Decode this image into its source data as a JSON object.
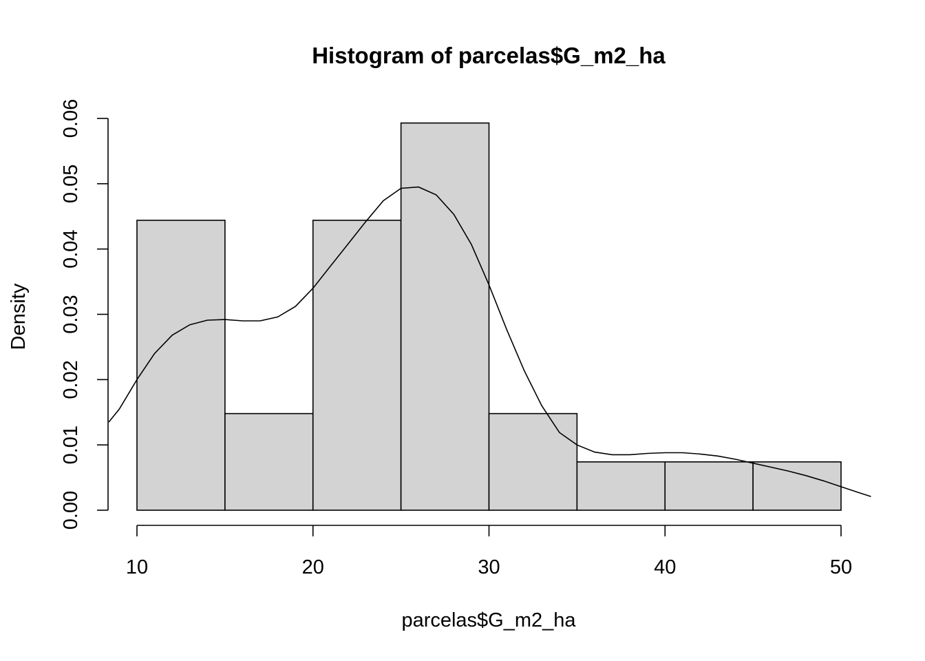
{
  "chart_data": {
    "type": "bar",
    "title": "Histogram of parcelas$G_m2_ha",
    "xlabel": "parcelas$G_m2_ha",
    "ylabel": "Density",
    "bins": [
      {
        "start": 10,
        "end": 15,
        "density": 0.0444
      },
      {
        "start": 15,
        "end": 20,
        "density": 0.0148
      },
      {
        "start": 20,
        "end": 25,
        "density": 0.0444
      },
      {
        "start": 25,
        "end": 30,
        "density": 0.0593
      },
      {
        "start": 30,
        "end": 35,
        "density": 0.0148
      },
      {
        "start": 35,
        "end": 40,
        "density": 0.0074
      },
      {
        "start": 40,
        "end": 45,
        "density": 0.0074
      },
      {
        "start": 45,
        "end": 50,
        "density": 0.0074
      }
    ],
    "x_ticks": [
      "10",
      "20",
      "30",
      "40",
      "50"
    ],
    "y_ticks": [
      "0.00",
      "0.01",
      "0.02",
      "0.03",
      "0.04",
      "0.05",
      "0.06"
    ],
    "xlim": [
      10,
      50
    ],
    "ylim": [
      0,
      0.06
    ],
    "grid": false,
    "legend": "none",
    "density_curve": {
      "x": [
        8.4,
        9,
        10,
        11,
        12,
        13,
        14,
        15,
        16,
        17,
        18,
        19,
        20,
        21,
        22,
        23,
        24,
        25,
        26,
        27,
        28,
        29,
        30,
        31,
        32,
        33,
        34,
        35,
        36,
        37,
        38,
        39,
        40,
        41,
        42,
        43,
        44,
        45,
        46,
        47,
        48,
        49,
        50,
        51,
        51.7
      ],
      "y": [
        0.0135,
        0.0155,
        0.02,
        0.024,
        0.0268,
        0.0284,
        0.0291,
        0.0292,
        0.029,
        0.029,
        0.0296,
        0.0312,
        0.034,
        0.0374,
        0.0408,
        0.0442,
        0.0474,
        0.0493,
        0.0495,
        0.0483,
        0.0453,
        0.0407,
        0.0345,
        0.0277,
        0.0214,
        0.016,
        0.0119,
        0.01,
        0.0089,
        0.0085,
        0.0085,
        0.0087,
        0.0088,
        0.0088,
        0.0086,
        0.0083,
        0.0078,
        0.0072,
        0.0066,
        0.006,
        0.0053,
        0.0045,
        0.0036,
        0.0027,
        0.0021
      ]
    }
  }
}
